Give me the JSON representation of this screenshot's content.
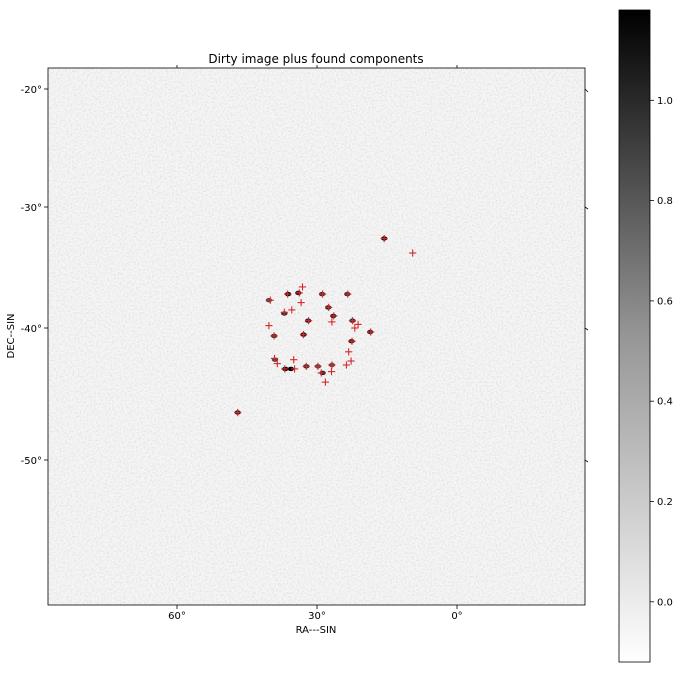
{
  "chart_data": {
    "type": "scatter",
    "title": "Dirty image plus found components",
    "xlabel": "RA---SIN",
    "ylabel": "DEC--SIN",
    "x_ticks": [
      "60°",
      "30°",
      "0°"
    ],
    "y_ticks": [
      "-20°",
      "-30°",
      "-40°",
      "-50°"
    ],
    "colorbar": {
      "ticks": [
        "0.0",
        "0.2",
        "0.4",
        "0.6",
        "0.8",
        "1.0"
      ],
      "range": [
        -0.12,
        1.18
      ],
      "colormap": "Greys"
    },
    "marker": {
      "symbol": "+",
      "color": "#d62728"
    },
    "background_color": "#f5f5f5",
    "components": [
      {
        "ra": 15.6,
        "dec": -32.6
      },
      {
        "ra": 9.5,
        "dec": -33.8
      },
      {
        "ra": 47.0,
        "dec": -46.4
      },
      {
        "ra": 40.0,
        "dec": -37.7
      },
      {
        "ra": 36.3,
        "dec": -37.2
      },
      {
        "ra": 33.8,
        "dec": -37.1
      },
      {
        "ra": 33.1,
        "dec": -36.6
      },
      {
        "ra": 28.8,
        "dec": -37.2
      },
      {
        "ra": 23.4,
        "dec": -37.2
      },
      {
        "ra": 33.4,
        "dec": -37.9
      },
      {
        "ra": 27.5,
        "dec": -38.3
      },
      {
        "ra": 37.0,
        "dec": -38.7
      },
      {
        "ra": 35.4,
        "dec": -38.5
      },
      {
        "ra": 26.4,
        "dec": -39.0
      },
      {
        "ra": 31.8,
        "dec": -39.4
      },
      {
        "ra": 26.8,
        "dec": -39.5
      },
      {
        "ra": 22.4,
        "dec": -39.4
      },
      {
        "ra": 21.2,
        "dec": -39.7
      },
      {
        "ra": 21.9,
        "dec": -40.0
      },
      {
        "ra": 18.5,
        "dec": -40.3
      },
      {
        "ra": 40.3,
        "dec": -39.8
      },
      {
        "ra": 32.9,
        "dec": -40.5
      },
      {
        "ra": 39.2,
        "dec": -40.6
      },
      {
        "ra": 22.5,
        "dec": -41.0
      },
      {
        "ra": 23.2,
        "dec": -41.8
      },
      {
        "ra": 39.1,
        "dec": -42.3
      },
      {
        "ra": 38.5,
        "dec": -42.7
      },
      {
        "ra": 35.0,
        "dec": -42.4
      },
      {
        "ra": 22.7,
        "dec": -42.5
      },
      {
        "ra": 23.7,
        "dec": -42.8
      },
      {
        "ra": 32.3,
        "dec": -42.9
      },
      {
        "ra": 29.8,
        "dec": -42.9
      },
      {
        "ra": 26.8,
        "dec": -42.8
      },
      {
        "ra": 36.9,
        "dec": -43.1
      },
      {
        "ra": 34.8,
        "dec": -43.1
      },
      {
        "ra": 26.9,
        "dec": -43.3
      },
      {
        "ra": 29.1,
        "dec": -43.4
      },
      {
        "ra": 28.2,
        "dec": -44.1
      }
    ],
    "bright_spots": [
      {
        "ra": 15.6,
        "dec": -32.6,
        "level": 0.9
      },
      {
        "ra": 47.0,
        "dec": -46.4,
        "level": 0.85
      },
      {
        "ra": 40.3,
        "dec": -37.7,
        "level": 0.7
      },
      {
        "ra": 36.2,
        "dec": -37.2,
        "level": 0.95
      },
      {
        "ra": 34.0,
        "dec": -37.1,
        "level": 0.9
      },
      {
        "ra": 28.9,
        "dec": -37.2,
        "level": 0.8
      },
      {
        "ra": 23.5,
        "dec": -37.2,
        "level": 0.8
      },
      {
        "ra": 27.6,
        "dec": -38.3,
        "level": 0.85
      },
      {
        "ra": 37.0,
        "dec": -38.8,
        "level": 0.8
      },
      {
        "ra": 26.5,
        "dec": -39.0,
        "level": 0.9
      },
      {
        "ra": 31.9,
        "dec": -39.4,
        "level": 0.85
      },
      {
        "ra": 22.4,
        "dec": -39.4,
        "level": 0.8
      },
      {
        "ra": 18.6,
        "dec": -40.3,
        "level": 0.85
      },
      {
        "ra": 32.9,
        "dec": -40.5,
        "level": 0.9
      },
      {
        "ra": 39.2,
        "dec": -40.6,
        "level": 0.8
      },
      {
        "ra": 22.6,
        "dec": -41.0,
        "level": 0.85
      },
      {
        "ra": 39.0,
        "dec": -42.4,
        "level": 0.7
      },
      {
        "ra": 35.6,
        "dec": -43.1,
        "level": 1.0
      },
      {
        "ra": 36.8,
        "dec": -43.1,
        "level": 1.0
      },
      {
        "ra": 32.3,
        "dec": -42.9,
        "level": 0.8
      },
      {
        "ra": 29.8,
        "dec": -42.9,
        "level": 0.7
      },
      {
        "ra": 28.8,
        "dec": -43.4,
        "level": 0.85
      },
      {
        "ra": 26.8,
        "dec": -42.8,
        "level": 0.7
      }
    ]
  }
}
